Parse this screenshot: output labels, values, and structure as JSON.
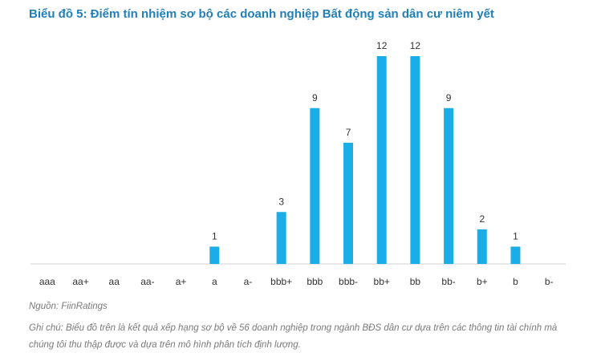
{
  "title": "Biểu đồ 5: Điểm tín nhiệm sơ bộ các doanh nghiệp Bất động sản dân cư niêm yết",
  "source": "Nguồn: FiinRatings",
  "note": "Ghi chú: Biểu đồ trên là kết quả xếp hạng sơ bộ về 56 doanh nghiệp trong ngành BĐS dân cư dựa trên các thông tin tài chính mà chúng tôi thu thập được và dựa trên mô hình phân tích định lượng.",
  "colors": {
    "bar": "#1aaee8",
    "title": "#1f7fb8",
    "axis": "#d0d0d0",
    "text": "#333333"
  },
  "chart_data": {
    "type": "bar",
    "categories": [
      "aaa",
      "aa+",
      "aa",
      "aa-",
      "a+",
      "a",
      "a-",
      "bbb+",
      "bbb",
      "bbb-",
      "bb+",
      "bb",
      "bb-",
      "b+",
      "b",
      "b-"
    ],
    "values": [
      0,
      0,
      0,
      0,
      0,
      1,
      0,
      3,
      9,
      7,
      12,
      12,
      9,
      2,
      1,
      0
    ],
    "data_labels": [
      "",
      "",
      "",
      "",
      "",
      "1",
      "",
      "3",
      "9",
      "7",
      "12",
      "12",
      "9",
      "2",
      "1",
      ""
    ],
    "ylim": [
      0,
      12
    ],
    "grid": false,
    "legend": "none"
  }
}
